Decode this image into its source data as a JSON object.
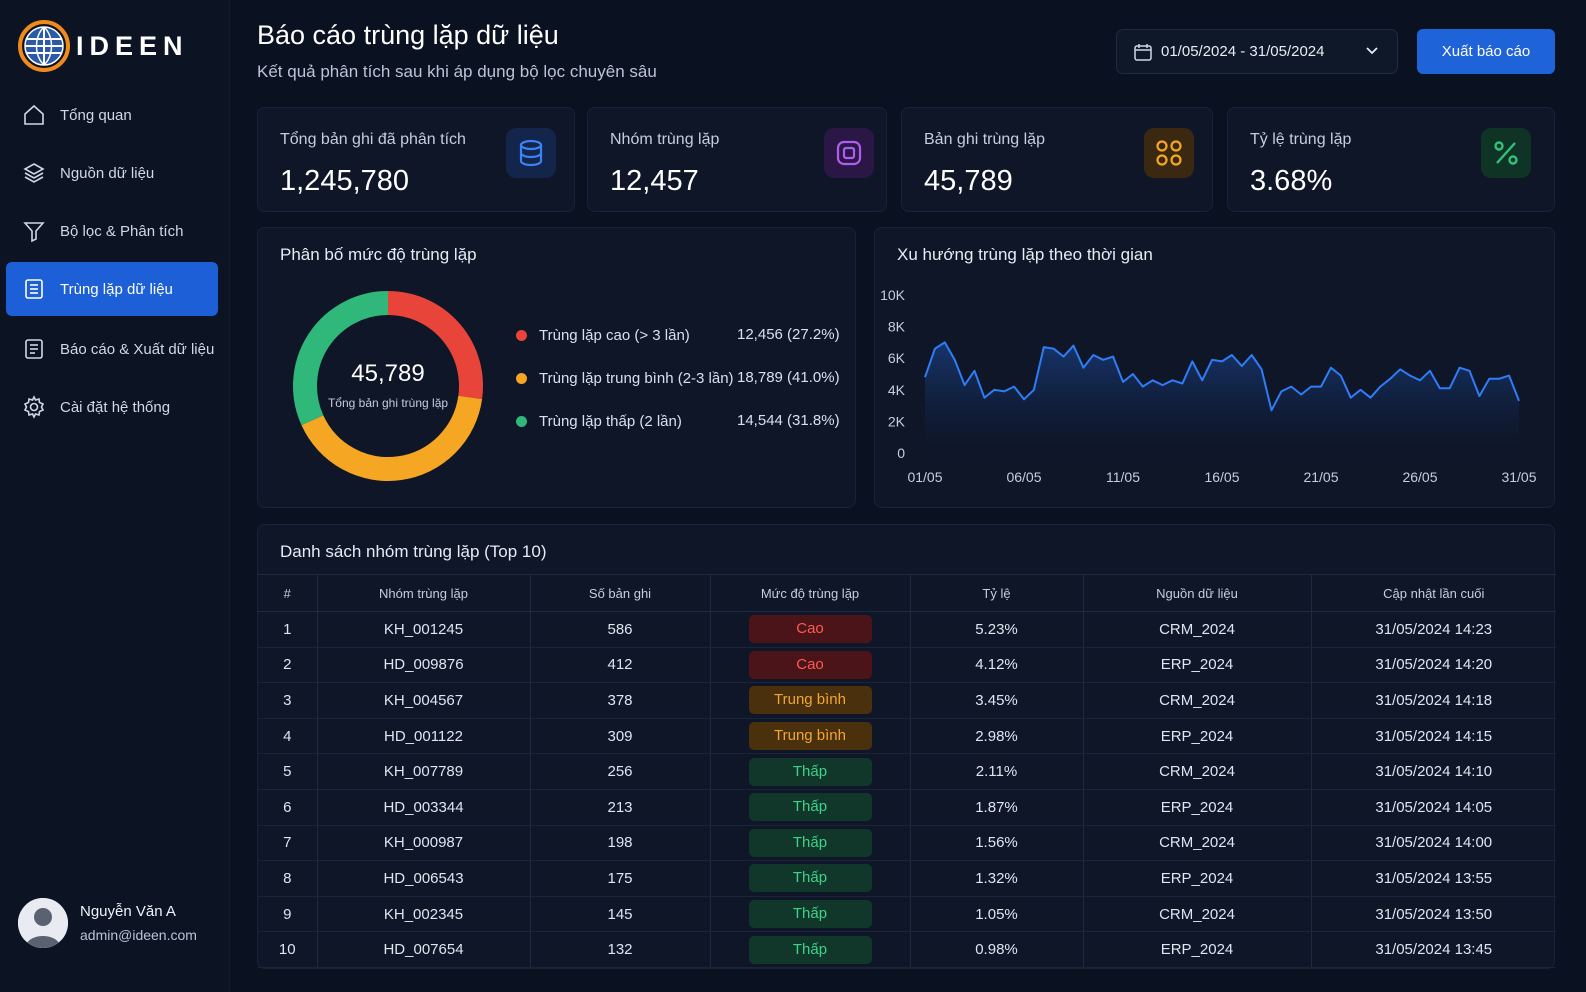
{
  "app": {
    "logo_text": "IDEEN"
  },
  "sidebar": {
    "items": [
      {
        "label": "Tổng quan",
        "icon": "home-icon"
      },
      {
        "label": "Nguồn dữ liệu",
        "icon": "database-icon"
      },
      {
        "label": "Bộ lọc & Phân tích",
        "icon": "filter-icon"
      },
      {
        "label": "Trùng lặp dữ liệu",
        "icon": "list-icon",
        "active": true
      },
      {
        "label": "Báo cáo & Xuất dữ liệu",
        "icon": "report-icon"
      },
      {
        "label": "Cài đặt hệ thống",
        "icon": "gear-icon"
      }
    ],
    "user": {
      "name": "Nguyễn Văn A",
      "email": "admin@ideen.com"
    }
  },
  "header": {
    "title": "Báo cáo trùng lặp dữ liệu",
    "subtitle": "Kết quả phân tích sau khi áp dụng bộ lọc chuyên sâu",
    "date_range": "01/05/2024 - 31/05/2024",
    "export_label": "Xuất báo cáo"
  },
  "stats": [
    {
      "label": "Tổng bản ghi đã phân tích",
      "value": "1,245,780",
      "icon": "database-icon",
      "color": "#3b82f6"
    },
    {
      "label": "Nhóm trùng lặp",
      "value": "12,457",
      "icon": "square-icon",
      "color": "#a855f7"
    },
    {
      "label": "Bản ghi trùng lặp",
      "value": "45,789",
      "icon": "cluster-icon",
      "color": "#f59e0b"
    },
    {
      "label": "Tỷ lệ trùng lặp",
      "value": "3.68%",
      "icon": "percent-icon",
      "color": "#22c55e"
    }
  ],
  "distribution": {
    "title": "Phân bố mức độ trùng lặp",
    "total": "45,789",
    "total_label": "Tổng bản ghi trùng lặp",
    "legend": [
      {
        "label": "Trùng lặp cao (> 3 lần)",
        "value": "12,456 (27.2%)",
        "color": "#e8443a"
      },
      {
        "label": "Trùng lặp trung bình (2-3 lần)",
        "value": "18,789 (41.0%)",
        "color": "#f5a623"
      },
      {
        "label": "Trùng lặp thấp (2 lần)",
        "value": "14,544 (31.8%)",
        "color": "#2fb87a"
      }
    ]
  },
  "trend": {
    "title": "Xu hướng trùng lặp theo thời gian"
  },
  "table": {
    "title": "Danh sách nhóm trùng lặp (Top 10)",
    "headers": [
      "#",
      "Nhóm trùng lặp",
      "Số bản ghi",
      "Mức độ trùng lặp",
      "Tỷ lệ",
      "Nguồn dữ liệu",
      "Cập nhật lần cuối"
    ],
    "rows": [
      {
        "idx": "1",
        "group": "KH_001245",
        "count": "586",
        "level": "Cao",
        "level_key": "high",
        "rate": "5.23%",
        "source": "CRM_2024",
        "updated": "31/05/2024 14:23"
      },
      {
        "idx": "2",
        "group": "HD_009876",
        "count": "412",
        "level": "Cao",
        "level_key": "high",
        "rate": "4.12%",
        "source": "ERP_2024",
        "updated": "31/05/2024 14:20"
      },
      {
        "idx": "3",
        "group": "KH_004567",
        "count": "378",
        "level": "Trung bình",
        "level_key": "mid",
        "rate": "3.45%",
        "source": "CRM_2024",
        "updated": "31/05/2024 14:18"
      },
      {
        "idx": "4",
        "group": "HD_001122",
        "count": "309",
        "level": "Trung bình",
        "level_key": "mid",
        "rate": "2.98%",
        "source": "ERP_2024",
        "updated": "31/05/2024 14:15"
      },
      {
        "idx": "5",
        "group": "KH_007789",
        "count": "256",
        "level": "Thấp",
        "level_key": "low",
        "rate": "2.11%",
        "source": "CRM_2024",
        "updated": "31/05/2024 14:10"
      },
      {
        "idx": "6",
        "group": "HD_003344",
        "count": "213",
        "level": "Thấp",
        "level_key": "low",
        "rate": "1.87%",
        "source": "ERP_2024",
        "updated": "31/05/2024 14:05"
      },
      {
        "idx": "7",
        "group": "KH_000987",
        "count": "198",
        "level": "Thấp",
        "level_key": "low",
        "rate": "1.56%",
        "source": "CRM_2024",
        "updated": "31/05/2024 14:00"
      },
      {
        "idx": "8",
        "group": "HD_006543",
        "count": "175",
        "level": "Thấp",
        "level_key": "low",
        "rate": "1.32%",
        "source": "ERP_2024",
        "updated": "31/05/2024 13:55"
      },
      {
        "idx": "9",
        "group": "KH_002345",
        "count": "145",
        "level": "Thấp",
        "level_key": "low",
        "rate": "1.05%",
        "source": "CRM_2024",
        "updated": "31/05/2024 13:50"
      },
      {
        "idx": "10",
        "group": "HD_007654",
        "count": "132",
        "level": "Thấp",
        "level_key": "low",
        "rate": "0.98%",
        "source": "ERP_2024",
        "updated": "31/05/2024 13:45"
      }
    ]
  },
  "chart_data": [
    {
      "type": "pie",
      "categories": [
        "Trùng lặp cao (> 3 lần)",
        "Trùng lặp trung bình (2-3 lần)",
        "Trùng lặp thấp (2 lần)"
      ],
      "values": [
        12456,
        18789,
        14544
      ],
      "colors": [
        "#e8443a",
        "#f5a623",
        "#2fb87a"
      ]
    },
    {
      "type": "area",
      "title": "Xu hướng trùng lặp theo thời gian",
      "x_ticks": [
        "01/05",
        "06/05",
        "11/05",
        "16/05",
        "21/05",
        "26/05",
        "31/05"
      ],
      "y_ticks": [
        "0",
        "2K",
        "4K",
        "6K",
        "8K",
        "10K"
      ],
      "ylim": [
        0,
        10000
      ],
      "x_domain": [
        1,
        31
      ],
      "color": "#2f7cf6",
      "points": [
        [
          1.0,
          4800
        ],
        [
          1.5,
          6600
        ],
        [
          2.0,
          7000
        ],
        [
          2.5,
          5900
        ],
        [
          3.0,
          4300
        ],
        [
          3.5,
          5200
        ],
        [
          4.0,
          3500
        ],
        [
          4.5,
          4000
        ],
        [
          5.0,
          3900
        ],
        [
          5.5,
          4200
        ],
        [
          6.0,
          3400
        ],
        [
          6.5,
          4000
        ],
        [
          7.0,
          6700
        ],
        [
          7.5,
          6600
        ],
        [
          8.0,
          6100
        ],
        [
          8.5,
          6800
        ],
        [
          9.0,
          5400
        ],
        [
          9.5,
          6200
        ],
        [
          10.0,
          5900
        ],
        [
          10.5,
          6100
        ],
        [
          11.0,
          4500
        ],
        [
          11.5,
          5000
        ],
        [
          12.0,
          4200
        ],
        [
          12.5,
          4600
        ],
        [
          13.0,
          4300
        ],
        [
          13.5,
          4600
        ],
        [
          14.0,
          4400
        ],
        [
          14.5,
          5800
        ],
        [
          15.0,
          4600
        ],
        [
          15.5,
          5900
        ],
        [
          16.0,
          5800
        ],
        [
          16.5,
          6200
        ],
        [
          17.0,
          5500
        ],
        [
          17.5,
          6200
        ],
        [
          18.0,
          5300
        ],
        [
          18.5,
          2700
        ],
        [
          19.0,
          3900
        ],
        [
          19.5,
          4200
        ],
        [
          20.0,
          3700
        ],
        [
          20.5,
          4200
        ],
        [
          21.0,
          4200
        ],
        [
          21.5,
          5400
        ],
        [
          22.0,
          4900
        ],
        [
          22.5,
          3500
        ],
        [
          23.0,
          4000
        ],
        [
          23.5,
          3500
        ],
        [
          24.0,
          4200
        ],
        [
          24.5,
          4700
        ],
        [
          25.0,
          5300
        ],
        [
          25.5,
          4900
        ],
        [
          26.0,
          4600
        ],
        [
          26.5,
          5200
        ],
        [
          27.0,
          4100
        ],
        [
          27.5,
          4100
        ],
        [
          28.0,
          5400
        ],
        [
          28.5,
          5200
        ],
        [
          29.0,
          3600
        ],
        [
          29.5,
          4700
        ],
        [
          30.0,
          4700
        ],
        [
          30.5,
          4900
        ],
        [
          31.0,
          3300
        ]
      ]
    }
  ]
}
